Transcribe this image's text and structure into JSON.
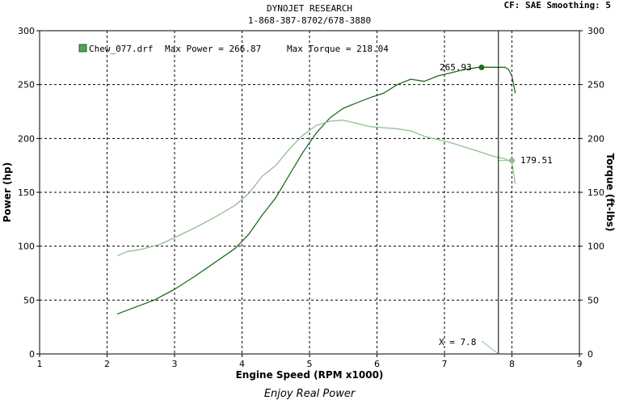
{
  "header": {
    "company": "DYNOJET RESEARCH",
    "phone": "1-868-387-8702/678-3880",
    "settings": "CF: SAE  Smoothing: 5"
  },
  "legend": {
    "run_name": "Chew_077.drf",
    "max_power_text": "Max Power = 266.87",
    "max_torque_text": "Max Torque = 218.04"
  },
  "cursor": {
    "x_label": "X = 7.8",
    "power_readout": "265.93",
    "torque_readout": "179.51"
  },
  "footer": {
    "tagline": "Enjoy Real Power"
  },
  "colors": {
    "power": "#1f6b1f",
    "torque": "#8fc08f",
    "grid": "#000000",
    "cursor": "#000000"
  },
  "chart_data": {
    "type": "line",
    "xlabel": "Engine Speed (RPM x1000)",
    "ylabel": "Power (hp)",
    "y2label": "Torque (ft-lbs)",
    "xlim": [
      1,
      9
    ],
    "ylim": [
      0,
      300
    ],
    "y2lim": [
      0,
      300
    ],
    "xticks": [
      1,
      2,
      3,
      4,
      5,
      6,
      7,
      8,
      9
    ],
    "yticks": [
      0,
      50,
      100,
      150,
      200,
      250,
      300
    ],
    "grid": true,
    "cursor_x": 7.8,
    "series": [
      {
        "name": "Power",
        "axis": "left",
        "x": [
          2.15,
          2.4,
          2.7,
          3.0,
          3.3,
          3.6,
          3.9,
          4.1,
          4.3,
          4.5,
          4.7,
          4.9,
          5.1,
          5.3,
          5.5,
          5.7,
          5.9,
          6.1,
          6.3,
          6.5,
          6.7,
          6.9,
          7.1,
          7.3,
          7.5,
          7.7,
          7.9,
          7.95,
          8.0,
          8.05
        ],
        "values": [
          37,
          43,
          50,
          60,
          72,
          85,
          98,
          111,
          129,
          145,
          166,
          187,
          205,
          219,
          228,
          233,
          238,
          242,
          250,
          255,
          253,
          258,
          261,
          264,
          266,
          266,
          266,
          264,
          258,
          242
        ]
      },
      {
        "name": "Torque",
        "axis": "right",
        "x": [
          2.15,
          2.3,
          2.5,
          2.8,
          3.0,
          3.3,
          3.6,
          3.9,
          4.1,
          4.3,
          4.5,
          4.7,
          4.9,
          5.1,
          5.3,
          5.5,
          5.7,
          5.9,
          6.1,
          6.3,
          6.5,
          6.7,
          6.9,
          7.1,
          7.3,
          7.5,
          7.7,
          7.9,
          8.0,
          8.05
        ],
        "values": [
          91,
          95,
          97,
          102,
          108,
          117,
          127,
          138,
          149,
          165,
          175,
          190,
          203,
          212,
          216,
          217,
          214,
          211,
          210,
          209,
          207,
          202,
          199,
          196,
          192,
          188,
          184,
          181,
          178,
          158
        ]
      }
    ]
  }
}
